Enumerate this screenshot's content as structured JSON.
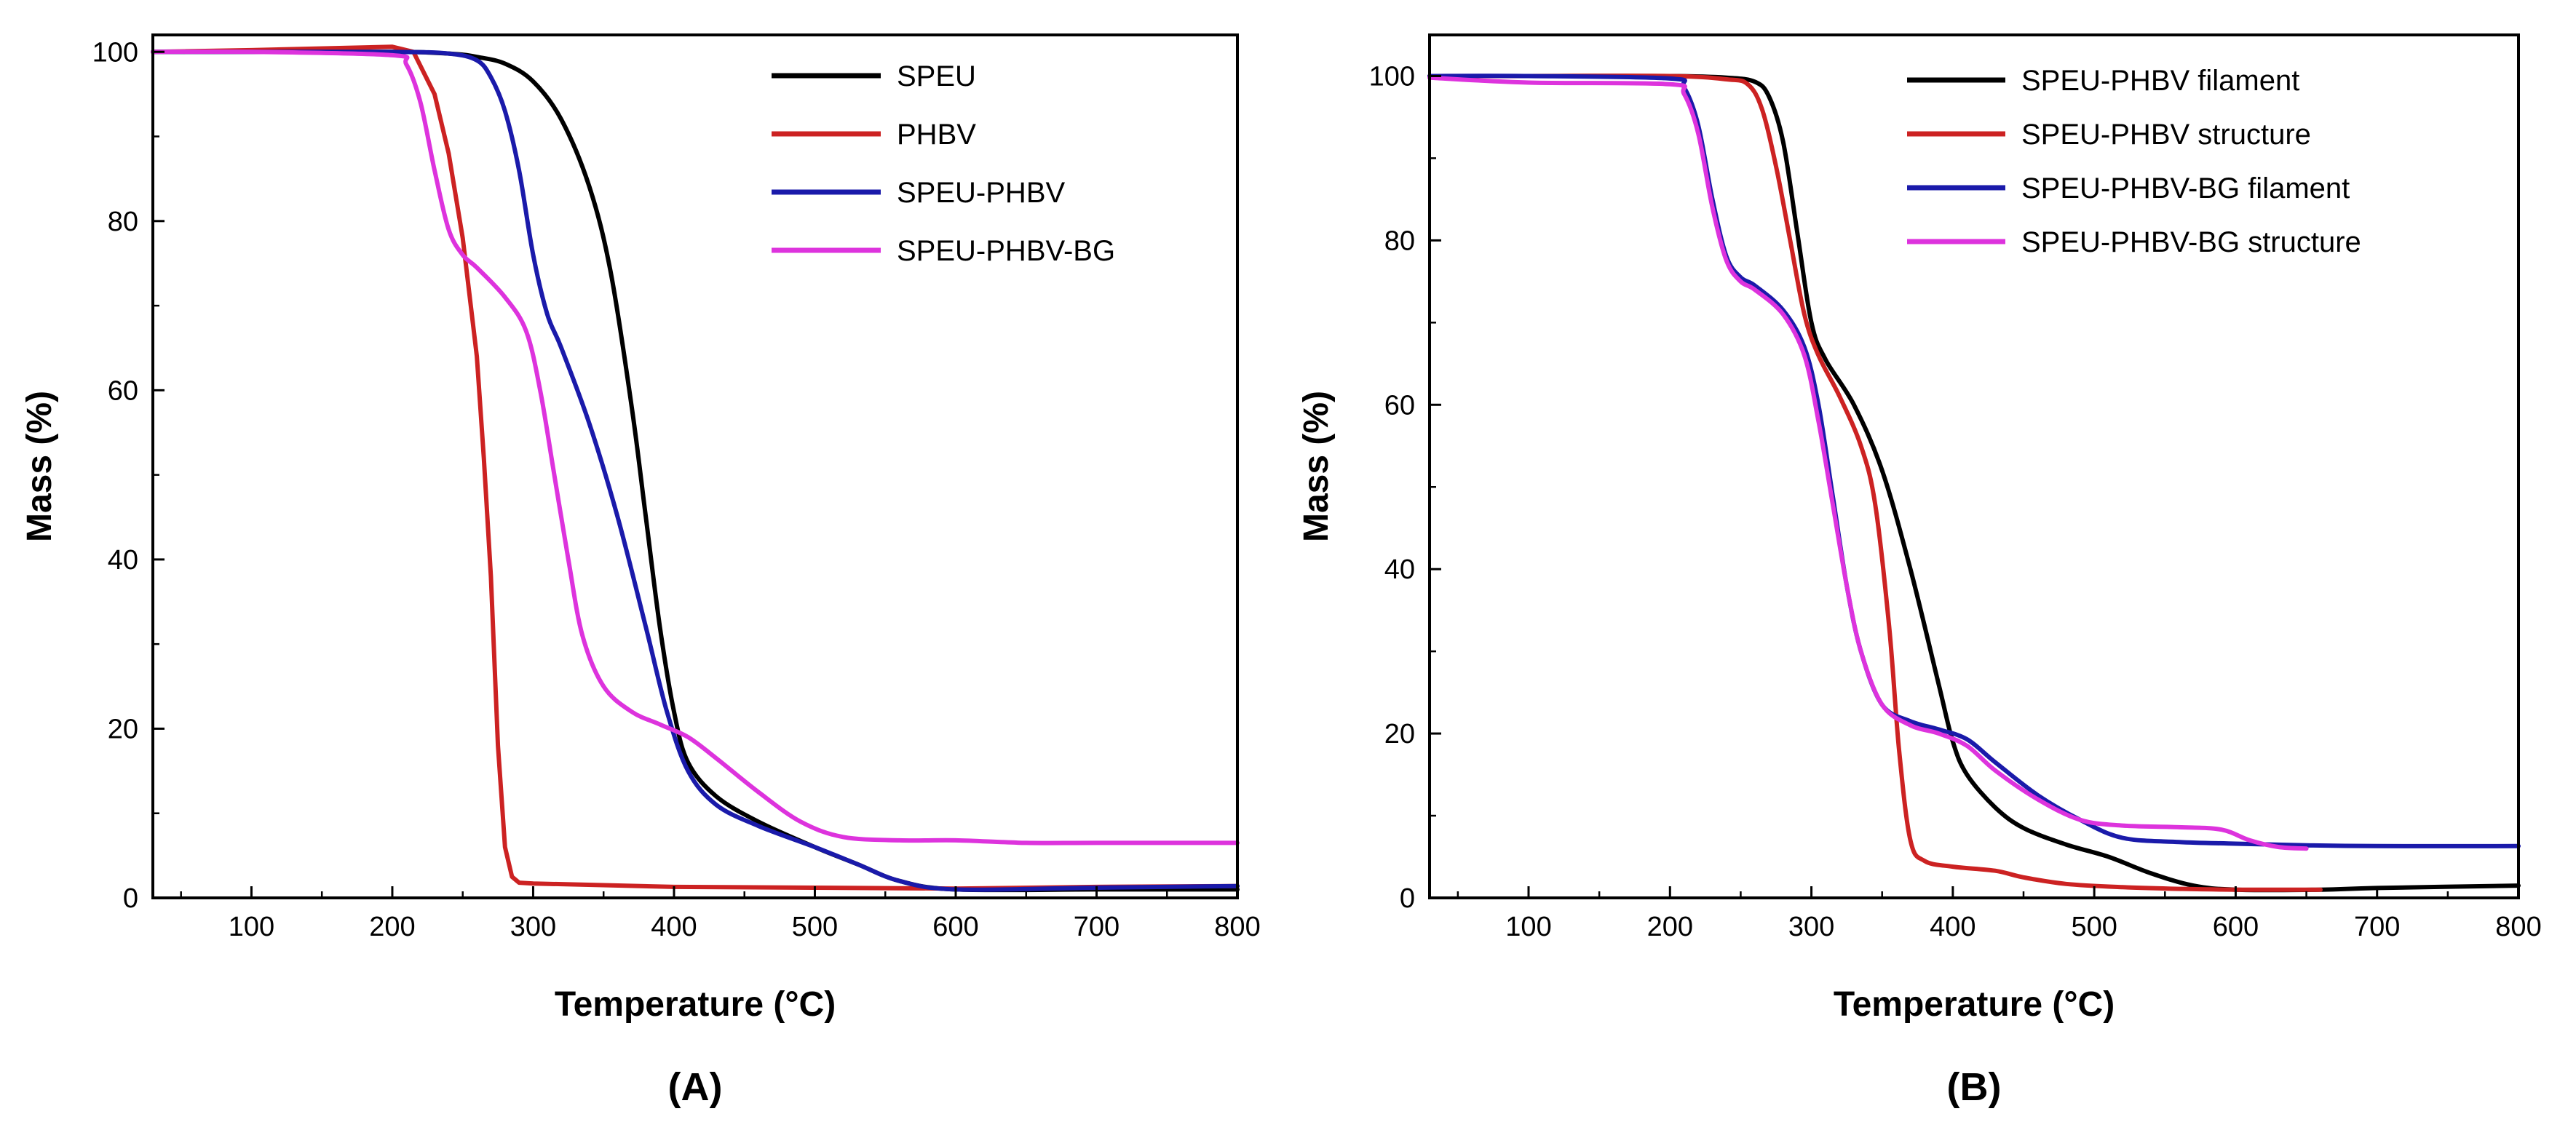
{
  "chart_data": [
    {
      "type": "line",
      "panel_label": "(A)",
      "xlabel": "Temperature (°C)",
      "ylabel": "Mass (%)",
      "xlim": [
        30,
        800
      ],
      "ylim": [
        0,
        102
      ],
      "xticks": [
        100,
        200,
        300,
        400,
        500,
        600,
        700,
        800
      ],
      "yticks": [
        0,
        20,
        40,
        60,
        80,
        100
      ],
      "legend_position": "top-right",
      "series": [
        {
          "name": "SPEU",
          "color": "#000000",
          "x": [
            30,
            100,
            200,
            240,
            260,
            280,
            300,
            320,
            340,
            355,
            370,
            380,
            390,
            400,
            410,
            430,
            460,
            500,
            530,
            560,
            600,
            700,
            800
          ],
          "y": [
            100,
            100,
            100,
            99.8,
            99.4,
            98.6,
            96.5,
            92,
            84,
            74,
            58,
            45,
            32,
            22,
            16,
            12,
            9,
            6,
            4,
            2,
            1,
            1,
            1
          ]
        },
        {
          "name": "PHBV",
          "color": "#cc2222",
          "x": [
            30,
            100,
            200,
            215,
            230,
            240,
            250,
            260,
            265,
            270,
            275,
            280,
            285,
            290,
            300,
            400,
            500,
            600,
            700,
            800
          ],
          "y": [
            100,
            100.2,
            100.6,
            100,
            95,
            88,
            78,
            64,
            52,
            38,
            18,
            6,
            2.5,
            1.8,
            1.7,
            1.3,
            1.2,
            1.1,
            1.3,
            1.4
          ],
          "smooth": false
        },
        {
          "name": "SPEU-PHBV",
          "color": "#1a1aaa",
          "x": [
            30,
            100,
            200,
            240,
            260,
            270,
            280,
            290,
            300,
            310,
            320,
            340,
            360,
            380,
            395,
            410,
            430,
            460,
            500,
            530,
            560,
            600,
            700,
            800
          ],
          "y": [
            100,
            100,
            100,
            99.8,
            99,
            97,
            93,
            86,
            76,
            69,
            65,
            56,
            45,
            32,
            22,
            15,
            11,
            8.5,
            6,
            4,
            2,
            1,
            1.2,
            1.4
          ]
        },
        {
          "name": "SPEU-PHBV-BG",
          "color": "#dd33dd",
          "x": [
            30,
            100,
            200,
            210,
            220,
            230,
            240,
            250,
            260,
            280,
            295,
            305,
            315,
            325,
            335,
            350,
            370,
            390,
            410,
            430,
            460,
            490,
            520,
            560,
            600,
            650,
            700,
            800
          ],
          "y": [
            100,
            100,
            99.6,
            98.5,
            94,
            86,
            79,
            76,
            74.5,
            71,
            67,
            60,
            50,
            40,
            31,
            25,
            22,
            20.5,
            19,
            16.5,
            12.5,
            9,
            7.2,
            6.8,
            6.8,
            6.5,
            6.5,
            6.5
          ]
        }
      ]
    },
    {
      "type": "line",
      "panel_label": "(B)",
      "xlabel": "Temperature (°C)",
      "ylabel": "Mass (%)",
      "xlim": [
        30,
        800
      ],
      "ylim": [
        0,
        105
      ],
      "xticks": [
        100,
        200,
        300,
        400,
        500,
        600,
        700,
        800
      ],
      "yticks": [
        0,
        20,
        40,
        60,
        80,
        100
      ],
      "legend_position": "top-right",
      "series": [
        {
          "name": "SPEU-PHBV filament",
          "color": "#000000",
          "x": [
            30,
            100,
            200,
            240,
            260,
            270,
            280,
            290,
            300,
            310,
            330,
            350,
            370,
            390,
            400,
            410,
            430,
            450,
            480,
            510,
            540,
            570,
            600,
            660,
            700,
            800
          ],
          "y": [
            100,
            100,
            100,
            99.8,
            99.3,
            97.5,
            92,
            81,
            70,
            65.5,
            60,
            52,
            40,
            26,
            19,
            15,
            11,
            8.5,
            6.5,
            5,
            3,
            1.5,
            1,
            1,
            1.2,
            1.5
          ]
        },
        {
          "name": "SPEU-PHBV structure",
          "color": "#cc2222",
          "x": [
            30,
            100,
            200,
            240,
            255,
            265,
            275,
            285,
            295,
            305,
            320,
            335,
            345,
            355,
            362,
            370,
            380,
            400,
            430,
            450,
            480,
            520,
            560,
            600,
            660
          ],
          "y": [
            100,
            100,
            100,
            99.6,
            99,
            96,
            89,
            80,
            71,
            66,
            61,
            55,
            48,
            33,
            18,
            7,
            4.5,
            3.8,
            3.3,
            2.5,
            1.7,
            1.3,
            1.1,
            1,
            1
          ]
        },
        {
          "name": "SPEU-PHBV-BG filament",
          "color": "#1a1aaa",
          "x": [
            30,
            100,
            200,
            210,
            220,
            230,
            240,
            250,
            260,
            280,
            295,
            305,
            315,
            325,
            335,
            350,
            370,
            390,
            410,
            430,
            460,
            490,
            520,
            560,
            600,
            650,
            700,
            800
          ],
          "y": [
            100,
            100,
            99.7,
            98.6,
            94,
            85,
            78,
            75.5,
            74.5,
            71.5,
            67,
            60,
            49,
            38,
            30,
            23.5,
            21.5,
            20.5,
            19.3,
            16.5,
            12.5,
            9.5,
            7.3,
            6.8,
            6.6,
            6.4,
            6.3,
            6.3
          ]
        },
        {
          "name": "SPEU-PHBV-BG structure",
          "color": "#dd33dd",
          "x": [
            30,
            100,
            200,
            210,
            220,
            230,
            240,
            250,
            260,
            280,
            295,
            305,
            315,
            325,
            335,
            350,
            370,
            390,
            410,
            430,
            460,
            490,
            520,
            560,
            590,
            610,
            630,
            650
          ],
          "y": [
            99.8,
            99.2,
            99,
            97.8,
            93,
            84,
            77.5,
            75,
            74,
            71,
            66,
            58,
            48,
            38,
            30,
            23.5,
            21,
            20,
            18.5,
            15.5,
            12,
            9.5,
            8.8,
            8.6,
            8.3,
            7,
            6.2,
            6
          ]
        }
      ]
    }
  ]
}
